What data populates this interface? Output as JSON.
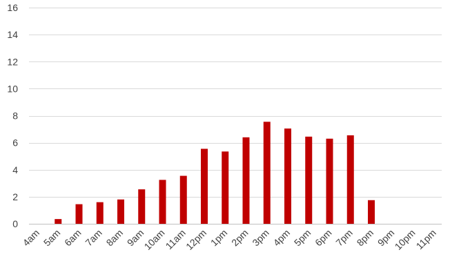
{
  "chart_data": {
    "type": "bar",
    "title": "",
    "xlabel": "",
    "ylabel": "",
    "categories": [
      "4am",
      "5am",
      "6am",
      "7am",
      "8am",
      "9am",
      "10am",
      "11am",
      "12pm",
      "1pm",
      "2pm",
      "3pm",
      "4pm",
      "5pm",
      "6pm",
      "7pm",
      "8pm",
      "9pm",
      "10pm",
      "11pm"
    ],
    "values": [
      0,
      0.35,
      1.45,
      1.6,
      1.8,
      2.55,
      3.25,
      3.55,
      5.55,
      5.35,
      6.4,
      7.55,
      7.05,
      6.45,
      6.3,
      6.55,
      1.75,
      0,
      0,
      0
    ],
    "ylim": [
      0,
      16
    ],
    "yticks": [
      0,
      2,
      4,
      6,
      8,
      10,
      12,
      14,
      16
    ],
    "grid": true,
    "legend": "none",
    "bar_color": "#c00000"
  }
}
